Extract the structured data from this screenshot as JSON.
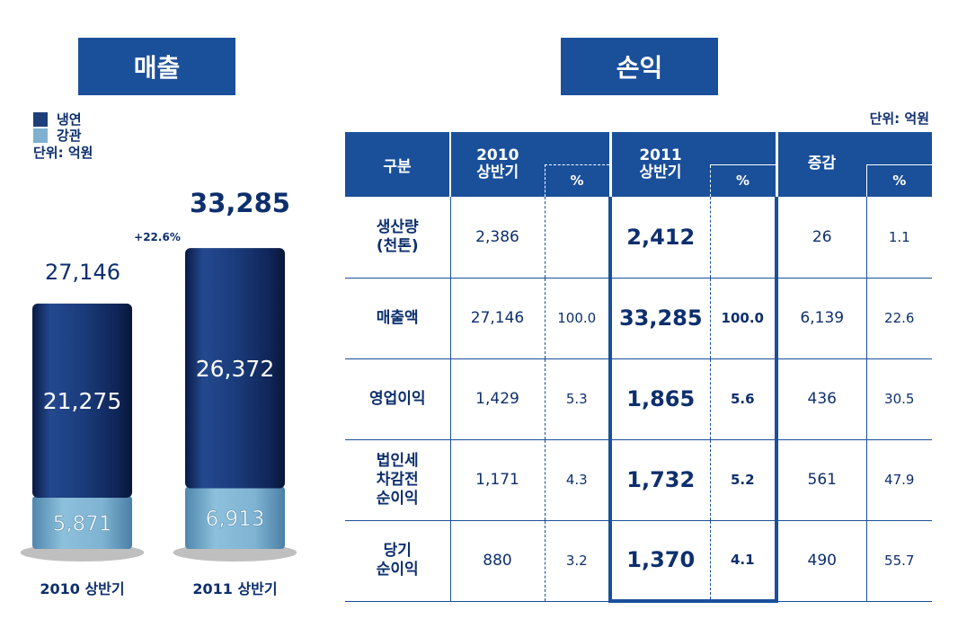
{
  "sales": {
    "title": "매출",
    "legend": [
      {
        "label": "냉연",
        "color": "#1f3f7a"
      },
      {
        "label": "강관",
        "color": "#7fb0cf"
      }
    ],
    "unit": "단위: 억원",
    "growth": "+22.6%"
  },
  "chart_data": {
    "type": "bar",
    "stacked": true,
    "categories": [
      "2010 상반기",
      "2011 상반기"
    ],
    "totals": [
      "27,146",
      "33,285"
    ],
    "series": [
      {
        "name": "냉연",
        "values": [
          21275,
          26372
        ],
        "labels": [
          "21,275",
          "26,372"
        ]
      },
      {
        "name": "강관",
        "values": [
          5871,
          6913
        ],
        "labels": [
          "5,871",
          "6,913"
        ]
      }
    ],
    "ylim": [
      0,
      36000
    ],
    "grid": false,
    "legend_position": "top-left"
  },
  "pnl": {
    "title": "손익",
    "unit": "단위: 억원",
    "headers": {
      "category": "구분",
      "y2010": "2010\n상반기",
      "pct": "%",
      "y2011": "2011\n상반기",
      "change": "증감"
    },
    "rows": [
      {
        "label": "생산량\n(천톤)",
        "v2010": "2,386",
        "p2010": "",
        "v2011": "2,412",
        "p2011": "",
        "diff": "26",
        "dpct": "1.1"
      },
      {
        "label": "매출액",
        "v2010": "27,146",
        "p2010": "100.0",
        "v2011": "33,285",
        "p2011": "100.0",
        "diff": "6,139",
        "dpct": "22.6"
      },
      {
        "label": "영업이익",
        "v2010": "1,429",
        "p2010": "5.3",
        "v2011": "1,865",
        "p2011": "5.6",
        "diff": "436",
        "dpct": "30.5"
      },
      {
        "label": "법인세\n차감전\n순이익",
        "v2010": "1,171",
        "p2010": "4.3",
        "v2011": "1,732",
        "p2011": "5.2",
        "diff": "561",
        "dpct": "47.9"
      },
      {
        "label": "당기\n순이익",
        "v2010": "880",
        "p2010": "3.2",
        "v2011": "1,370",
        "p2011": "4.1",
        "diff": "490",
        "dpct": "55.7"
      }
    ]
  }
}
